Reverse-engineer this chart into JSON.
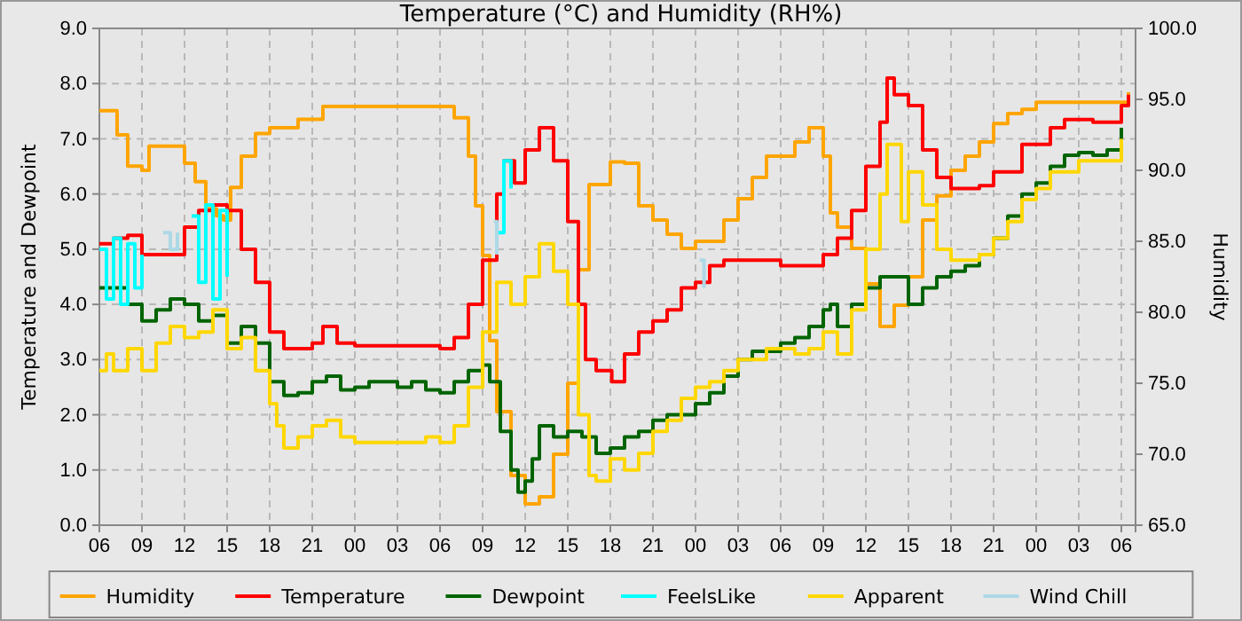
{
  "chart_data": {
    "type": "step",
    "title": "Temperature (°C) and Humidity (RH%)",
    "ylabel": "Temperature and Dewpoint",
    "y2label": "Humidity",
    "xlim": [
      "2000-01-01T06:00",
      "2000-01-04T07:00"
    ],
    "xticks": [
      {
        "value": "2000-01-01T06:00",
        "label": "06"
      },
      {
        "value": "2000-01-01T09:00",
        "label": "09"
      },
      {
        "value": "2000-01-01T12:00",
        "label": "12"
      },
      {
        "value": "2000-01-01T15:00",
        "label": "15"
      },
      {
        "value": "2000-01-01T18:00",
        "label": "18"
      },
      {
        "value": "2000-01-01T21:00",
        "label": "21"
      },
      {
        "value": "2000-01-02T00:00",
        "label": "00"
      },
      {
        "value": "2000-01-02T03:00",
        "label": "03"
      },
      {
        "value": "2000-01-02T06:00",
        "label": "06"
      },
      {
        "value": "2000-01-02T09:00",
        "label": "09"
      },
      {
        "value": "2000-01-02T12:00",
        "label": "12"
      },
      {
        "value": "2000-01-02T15:00",
        "label": "15"
      },
      {
        "value": "2000-01-02T18:00",
        "label": "18"
      },
      {
        "value": "2000-01-02T21:00",
        "label": "21"
      },
      {
        "value": "2000-01-03T00:00",
        "label": "00"
      },
      {
        "value": "2000-01-03T03:00",
        "label": "03"
      },
      {
        "value": "2000-01-03T06:00",
        "label": "06"
      },
      {
        "value": "2000-01-03T09:00",
        "label": "09"
      },
      {
        "value": "2000-01-03T12:00",
        "label": "12"
      },
      {
        "value": "2000-01-03T15:00",
        "label": "15"
      },
      {
        "value": "2000-01-03T18:00",
        "label": "18"
      },
      {
        "value": "2000-01-03T21:00",
        "label": "21"
      },
      {
        "value": "2000-01-04T00:00",
        "label": "00"
      },
      {
        "value": "2000-01-04T03:00",
        "label": "03"
      },
      {
        "value": "2000-01-04T06:00",
        "label": "06"
      }
    ],
    "ylim": [
      0,
      9
    ],
    "yticks": [
      {
        "value": 0,
        "label": "0.0"
      },
      {
        "value": 1,
        "label": "1.0"
      },
      {
        "value": 2,
        "label": "2.0"
      },
      {
        "value": 3,
        "label": "3.0"
      },
      {
        "value": 4,
        "label": "4.0"
      },
      {
        "value": 5,
        "label": "5.0"
      },
      {
        "value": 6,
        "label": "6.0"
      },
      {
        "value": 7,
        "label": "7.0"
      },
      {
        "value": 8,
        "label": "8.0"
      },
      {
        "value": 9,
        "label": "9.0"
      }
    ],
    "y2lim": [
      65,
      100
    ],
    "y2ticks": [
      {
        "value": 65,
        "label": "65.0"
      },
      {
        "value": 70,
        "label": "70.0"
      },
      {
        "value": 75,
        "label": "75.0"
      },
      {
        "value": 80,
        "label": "80.0"
      },
      {
        "value": 85,
        "label": "85.0"
      },
      {
        "value": 90,
        "label": "90.0"
      },
      {
        "value": 95,
        "label": "95.0"
      },
      {
        "value": 100,
        "label": "100.0"
      }
    ],
    "grid": true,
    "legend": "bottom",
    "series": [
      {
        "name": "Humidity",
        "color": "#ffa500",
        "axis": "y2",
        "x": [
          "2000-01-01T06:00",
          "2000-01-01T07:15",
          "2000-01-01T08:00",
          "2000-01-01T09:00",
          "2000-01-01T09:30",
          "2000-01-01T11:00",
          "2000-01-01T12:00",
          "2000-01-01T12:45",
          "2000-01-01T13:30",
          "2000-01-01T14:15",
          "2000-01-01T14:45",
          "2000-01-01T15:15",
          "2000-01-01T16:00",
          "2000-01-01T17:00",
          "2000-01-01T18:00",
          "2000-01-01T20:00",
          "2000-01-01T21:45",
          "2000-01-02T06:00",
          "2000-01-02T07:00",
          "2000-01-02T08:00",
          "2000-01-02T08:30",
          "2000-01-02T09:00",
          "2000-01-02T09:30",
          "2000-01-02T10:00",
          "2000-01-02T11:00",
          "2000-01-02T12:00",
          "2000-01-02T13:00",
          "2000-01-02T14:00",
          "2000-01-02T15:00",
          "2000-01-02T15:45",
          "2000-01-02T16:30",
          "2000-01-02T18:00",
          "2000-01-02T19:00",
          "2000-01-02T20:00",
          "2000-01-02T21:00",
          "2000-01-02T22:00",
          "2000-01-02T23:00",
          "2000-01-03T00:00",
          "2000-01-03T01:00",
          "2000-01-03T02:00",
          "2000-01-03T03:00",
          "2000-01-03T04:00",
          "2000-01-03T05:00",
          "2000-01-03T07:00",
          "2000-01-03T08:00",
          "2000-01-03T09:00",
          "2000-01-03T09:30",
          "2000-01-03T10:00",
          "2000-01-03T11:00",
          "2000-01-03T12:00",
          "2000-01-03T13:00",
          "2000-01-03T14:00",
          "2000-01-03T15:00",
          "2000-01-03T16:00",
          "2000-01-03T17:00",
          "2000-01-03T18:00",
          "2000-01-03T19:00",
          "2000-01-03T20:00",
          "2000-01-03T21:00",
          "2000-01-03T22:00",
          "2000-01-03T23:00",
          "2000-01-04T00:00",
          "2000-01-04T06:00",
          "2000-01-04T06:30"
        ],
        "values": [
          94.2,
          92.5,
          90.3,
          90,
          91.7,
          91.7,
          90.5,
          89.2,
          87.3,
          86.8,
          86.5,
          88.8,
          91,
          92.6,
          93,
          93.6,
          94.5,
          94.5,
          93.7,
          91,
          87.5,
          84,
          78,
          73,
          68.5,
          66.5,
          67,
          70,
          75,
          83,
          89,
          90.6,
          90.5,
          87.5,
          86.5,
          85.5,
          84.5,
          85,
          85,
          86.5,
          88,
          89.5,
          91,
          92,
          93,
          91,
          87,
          86,
          84.5,
          82,
          79,
          80.5,
          82.5,
          86.5,
          88.2,
          90,
          91,
          92,
          93.3,
          94,
          94.3,
          94.8,
          94.8,
          95.5
        ]
      },
      {
        "name": "Temperature",
        "color": "#ff0000",
        "x": [
          "2000-01-01T06:00",
          "2000-01-01T07:00",
          "2000-01-01T08:00",
          "2000-01-01T09:00",
          "2000-01-01T12:00",
          "2000-01-01T13:00",
          "2000-01-01T14:00",
          "2000-01-01T15:00",
          "2000-01-01T16:00",
          "2000-01-01T17:00",
          "2000-01-01T18:00",
          "2000-01-01T19:00",
          "2000-01-01T20:00",
          "2000-01-01T21:00",
          "2000-01-01T21:45",
          "2000-01-01T22:45",
          "2000-01-02T00:00",
          "2000-01-02T03:00",
          "2000-01-02T06:00",
          "2000-01-02T07:00",
          "2000-01-02T08:00",
          "2000-01-02T09:00",
          "2000-01-02T10:00",
          "2000-01-02T10:30",
          "2000-01-02T11:15",
          "2000-01-02T12:00",
          "2000-01-02T13:00",
          "2000-01-02T14:00",
          "2000-01-02T15:00",
          "2000-01-02T15:45",
          "2000-01-02T16:15",
          "2000-01-02T17:00",
          "2000-01-02T18:06",
          "2000-01-02T19:00",
          "2000-01-02T20:00",
          "2000-01-02T21:00",
          "2000-01-02T22:00",
          "2000-01-02T23:00",
          "2000-01-03T00:00",
          "2000-01-03T01:00",
          "2000-01-03T02:00",
          "2000-01-03T04:00",
          "2000-01-03T06:00",
          "2000-01-03T08:00",
          "2000-01-03T09:00",
          "2000-01-03T10:00",
          "2000-01-03T11:00",
          "2000-01-03T12:00",
          "2000-01-03T13:00",
          "2000-01-03T13:30",
          "2000-01-03T14:00",
          "2000-01-03T15:00",
          "2000-01-03T16:00",
          "2000-01-03T17:00",
          "2000-01-03T18:00",
          "2000-01-03T20:00",
          "2000-01-03T21:00",
          "2000-01-03T23:00",
          "2000-01-04T01:00",
          "2000-01-04T02:00",
          "2000-01-04T04:00",
          "2000-01-04T05:30",
          "2000-01-04T06:00",
          "2000-01-04T06:30"
        ],
        "values": [
          5.1,
          5.2,
          5.25,
          4.9,
          5.4,
          5.7,
          5.8,
          5.7,
          5.0,
          4.4,
          3.5,
          3.2,
          3.2,
          3.3,
          3.6,
          3.3,
          3.25,
          3.25,
          3.2,
          3.4,
          4.0,
          4.8,
          6.0,
          6.6,
          6.2,
          6.8,
          7.2,
          6.6,
          5.5,
          4.0,
          3.0,
          2.8,
          2.6,
          3.1,
          3.5,
          3.7,
          3.9,
          4.3,
          4.4,
          4.7,
          4.8,
          4.8,
          4.7,
          4.7,
          4.9,
          5.2,
          5.7,
          6.5,
          7.3,
          8.1,
          7.8,
          7.6,
          6.8,
          6.3,
          6.1,
          6.15,
          6.4,
          6.9,
          7.2,
          7.35,
          7.3,
          7.3,
          7.6,
          7.8
        ]
      },
      {
        "name": "Dewpoint",
        "color": "#006400",
        "x": [
          "2000-01-01T06:00",
          "2000-01-01T07:00",
          "2000-01-01T08:00",
          "2000-01-01T09:00",
          "2000-01-01T10:00",
          "2000-01-01T11:00",
          "2000-01-01T12:00",
          "2000-01-01T13:00",
          "2000-01-01T14:00",
          "2000-01-01T15:00",
          "2000-01-01T16:00",
          "2000-01-01T17:00",
          "2000-01-01T18:00",
          "2000-01-01T19:00",
          "2000-01-01T20:00",
          "2000-01-01T21:00",
          "2000-01-01T22:00",
          "2000-01-01T23:00",
          "2000-01-02T00:00",
          "2000-01-02T01:00",
          "2000-01-02T03:00",
          "2000-01-02T04:00",
          "2000-01-02T05:00",
          "2000-01-02T06:00",
          "2000-01-02T07:00",
          "2000-01-02T08:00",
          "2000-01-02T09:00",
          "2000-01-02T09:30",
          "2000-01-02T10:15",
          "2000-01-02T11:00",
          "2000-01-02T11:30",
          "2000-01-02T12:00",
          "2000-01-02T12:30",
          "2000-01-02T13:00",
          "2000-01-02T14:00",
          "2000-01-02T15:00",
          "2000-01-02T16:00",
          "2000-01-02T17:00",
          "2000-01-02T18:00",
          "2000-01-02T19:00",
          "2000-01-02T20:00",
          "2000-01-02T21:00",
          "2000-01-02T22:00",
          "2000-01-03T00:00",
          "2000-01-03T01:00",
          "2000-01-03T02:00",
          "2000-01-03T03:00",
          "2000-01-03T04:00",
          "2000-01-03T06:00",
          "2000-01-03T07:00",
          "2000-01-03T08:00",
          "2000-01-03T09:00",
          "2000-01-03T09:30",
          "2000-01-03T10:00",
          "2000-01-03T11:00",
          "2000-01-03T12:00",
          "2000-01-03T13:00",
          "2000-01-03T14:00",
          "2000-01-03T15:00",
          "2000-01-03T16:00",
          "2000-01-03T17:00",
          "2000-01-03T18:00",
          "2000-01-03T19:00",
          "2000-01-03T20:00",
          "2000-01-03T21:00",
          "2000-01-03T22:00",
          "2000-01-03T23:00",
          "2000-01-04T00:00",
          "2000-01-04T01:00",
          "2000-01-04T02:00",
          "2000-01-04T03:00",
          "2000-01-04T04:00",
          "2000-01-04T05:00",
          "2000-01-04T06:00"
        ],
        "values": [
          4.3,
          4.3,
          4.0,
          3.7,
          3.9,
          4.1,
          4.0,
          3.7,
          3.8,
          3.3,
          3.6,
          3.3,
          2.6,
          2.35,
          2.4,
          2.6,
          2.7,
          2.45,
          2.5,
          2.6,
          2.5,
          2.6,
          2.45,
          2.4,
          2.6,
          2.8,
          2.9,
          2.6,
          1.7,
          1.0,
          0.6,
          0.8,
          1.2,
          1.8,
          1.6,
          1.7,
          1.6,
          1.3,
          1.4,
          1.6,
          1.7,
          1.9,
          2.0,
          2.2,
          2.4,
          2.7,
          3.0,
          3.15,
          3.3,
          3.4,
          3.6,
          3.9,
          4.0,
          3.6,
          4.0,
          4.3,
          4.5,
          4.5,
          4.0,
          4.3,
          4.5,
          4.6,
          4.7,
          4.9,
          5.2,
          5.6,
          6.0,
          6.2,
          6.5,
          6.7,
          6.75,
          6.7,
          6.8,
          7.2
        ]
      },
      {
        "name": "FeelsLike",
        "color": "#00ffff",
        "x": [
          "2000-01-01T06:00",
          "2000-01-01T06:30",
          "2000-01-01T07:00",
          "2000-01-01T07:30",
          "2000-01-01T08:00",
          "2000-01-01T08:30",
          "2000-01-01T09:00",
          "2000-01-01T09:30",
          "2000-01-01T12:30",
          "2000-01-01T13:00",
          "2000-01-01T13:30",
          "2000-01-01T14:00",
          "2000-01-01T14:30",
          "2000-01-01T15:00",
          "2000-01-01T15:30",
          "2000-01-02T10:00",
          "2000-01-02T10:30",
          "2000-01-02T11:00"
        ],
        "values": [
          5.0,
          4.1,
          5.2,
          4.0,
          5.1,
          4.3,
          4.9,
          null,
          5.6,
          4.4,
          5.8,
          4.1,
          5.7,
          4.5,
          null,
          5.3,
          6.6,
          6.1
        ]
      },
      {
        "name": "Apparent",
        "color": "#ffd700",
        "x": [
          "2000-01-01T06:00",
          "2000-01-01T06:30",
          "2000-01-01T07:00",
          "2000-01-01T08:00",
          "2000-01-01T09:00",
          "2000-01-01T10:00",
          "2000-01-01T11:00",
          "2000-01-01T12:00",
          "2000-01-01T13:00",
          "2000-01-01T14:00",
          "2000-01-01T15:00",
          "2000-01-01T16:00",
          "2000-01-01T17:00",
          "2000-01-01T18:00",
          "2000-01-01T18:30",
          "2000-01-01T19:00",
          "2000-01-01T20:00",
          "2000-01-01T21:00",
          "2000-01-01T22:00",
          "2000-01-01T23:00",
          "2000-01-02T00:00",
          "2000-01-02T03:00",
          "2000-01-02T05:00",
          "2000-01-02T06:00",
          "2000-01-02T07:00",
          "2000-01-02T08:00",
          "2000-01-02T09:00",
          "2000-01-02T10:00",
          "2000-01-02T11:00",
          "2000-01-02T12:00",
          "2000-01-02T13:00",
          "2000-01-02T14:00",
          "2000-01-02T15:00",
          "2000-01-02T15:45",
          "2000-01-02T16:30",
          "2000-01-02T17:00",
          "2000-01-02T18:00",
          "2000-01-02T19:00",
          "2000-01-02T20:00",
          "2000-01-02T21:00",
          "2000-01-02T22:00",
          "2000-01-02T23:00",
          "2000-01-03T00:00",
          "2000-01-03T01:00",
          "2000-01-03T02:00",
          "2000-01-03T03:00",
          "2000-01-03T05:00",
          "2000-01-03T07:00",
          "2000-01-03T08:00",
          "2000-01-03T09:00",
          "2000-01-03T10:00",
          "2000-01-03T11:00",
          "2000-01-03T12:00",
          "2000-01-03T13:00",
          "2000-01-03T13:30",
          "2000-01-03T14:30",
          "2000-01-03T15:00",
          "2000-01-03T16:00",
          "2000-01-03T17:00",
          "2000-01-03T18:00",
          "2000-01-03T20:00",
          "2000-01-03T21:00",
          "2000-01-03T22:00",
          "2000-01-03T23:00",
          "2000-01-04T00:00",
          "2000-01-04T01:00",
          "2000-01-04T03:00",
          "2000-01-04T05:00",
          "2000-01-04T06:00"
        ],
        "values": [
          2.8,
          3.1,
          2.8,
          3.2,
          2.8,
          3.3,
          3.6,
          3.4,
          3.5,
          3.9,
          3.2,
          3.4,
          2.8,
          2.2,
          1.8,
          1.4,
          1.6,
          1.8,
          1.9,
          1.6,
          1.5,
          1.5,
          1.6,
          1.5,
          1.8,
          2.5,
          3.5,
          4.4,
          4.0,
          4.5,
          5.1,
          4.6,
          4.0,
          2.0,
          0.9,
          0.8,
          1.2,
          1.0,
          1.3,
          1.7,
          1.9,
          2.3,
          2.5,
          2.6,
          2.8,
          3.0,
          3.2,
          3.1,
          3.2,
          3.5,
          3.1,
          3.9,
          5.0,
          6.0,
          6.9,
          5.5,
          6.4,
          5.8,
          5.0,
          4.8,
          4.9,
          5.2,
          5.5,
          5.9,
          6.1,
          6.4,
          6.6,
          6.6,
          7.0
        ]
      },
      {
        "name": "Wind Chill",
        "color": "#add8e6",
        "x": [
          "2000-01-01T10:30",
          "2000-01-01T11:00",
          "2000-01-01T11:30",
          "2000-01-01T12:00",
          "2000-01-02T09:48",
          "2000-01-02T10:00",
          "2000-01-02T10:18",
          "2000-01-03T00:18",
          "2000-01-03T00:36"
        ],
        "values": [
          5.3,
          5.0,
          5.3,
          null,
          5.5,
          4.9,
          null,
          4.8,
          4.3
        ]
      }
    ]
  }
}
